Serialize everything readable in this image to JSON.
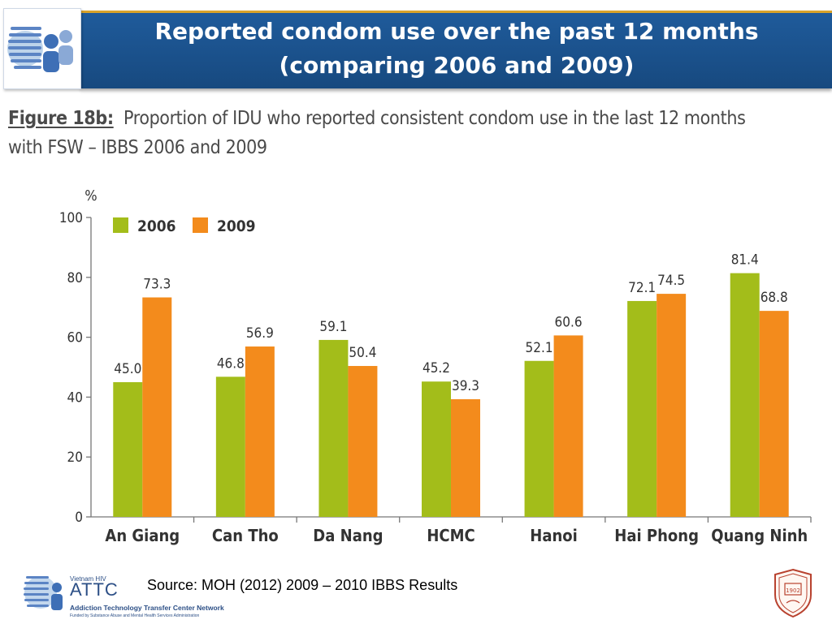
{
  "slide": {
    "title_line1": "Reported condom use over the past 12 months",
    "title_line2": "(comparing 2006 and 2009)",
    "figure_label": "Figure 18b:",
    "figure_caption_line1": "Proportion of IDU who reported consistent condom use in the last 12 months",
    "figure_caption_line2": "with FSW – IBBS 2006 and 2009",
    "source": "Source: MOH (2012)  2009 – 2010 IBBS Results"
  },
  "footer": {
    "org_small": "Vietnam HIV",
    "org_name": "ATTC",
    "org_full": "Addiction Technology Transfer Center Network",
    "org_funding": "Funded by Substance Abuse and Mental Health Services Administration",
    "seal_year": "1902"
  },
  "colors": {
    "title_band": "#1f5b9b",
    "accent_gold": "#d9a32a",
    "series_2006": "#a3bd1a",
    "series_2009": "#f38b1c"
  },
  "chart_data": {
    "type": "bar",
    "ylabel": "%",
    "ylim": [
      0,
      100
    ],
    "yticks": [
      0,
      20,
      40,
      60,
      80,
      100
    ],
    "legend_position": "top-left",
    "categories": [
      "An Giang",
      "Can Tho",
      "Da Nang",
      "HCMC",
      "Hanoi",
      "Hai Phong",
      "Quang Ninh"
    ],
    "series": [
      {
        "name": "2006",
        "color": "#a3bd1a",
        "values": [
          45.0,
          46.8,
          59.1,
          45.2,
          52.1,
          72.1,
          81.4
        ]
      },
      {
        "name": "2009",
        "color": "#f38b1c",
        "values": [
          73.3,
          56.9,
          50.4,
          39.3,
          60.6,
          74.5,
          68.8
        ]
      }
    ]
  }
}
